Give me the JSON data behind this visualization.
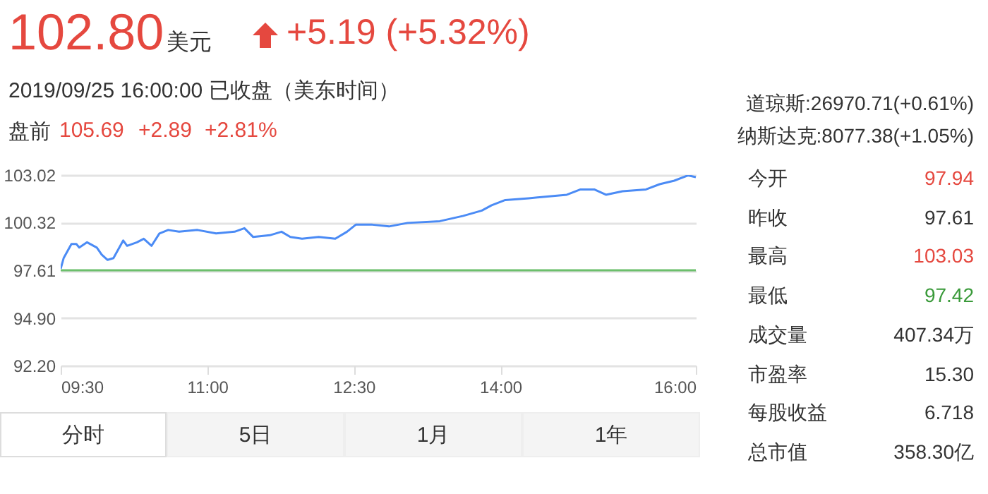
{
  "chart_data": {
    "type": "line",
    "title": "102.80",
    "subtitle": "2019/09/25 16:00:00 已收盘（美东时间）",
    "annotations": [
      "美元",
      "+5.19 (+5.32%)",
      "盘前",
      "105.69",
      "+2.89",
      "+2.81%",
      "道琼斯:26970.71(+0.61%)",
      "纳斯达克:8077.38(+1.05%)",
      "今开",
      "97.94",
      "昨收",
      "97.61",
      "最高",
      "103.03",
      "最低",
      "97.42",
      "成交量",
      "407.34万",
      "市盈率",
      "15.30",
      "每股收益",
      "6.718",
      "总市值",
      "358.30亿",
      "分时",
      "5日",
      "1月",
      "1年"
    ],
    "x": [
      9.5,
      9.53,
      9.61,
      9.66,
      9.69,
      9.77,
      9.87,
      9.92,
      9.98,
      10.04,
      10.14,
      10.18,
      10.28,
      10.35,
      10.43,
      10.51,
      10.6,
      10.71,
      10.9,
      11.09,
      11.28,
      11.38,
      11.47,
      11.64,
      11.76,
      11.85,
      11.97,
      12.14,
      12.31,
      12.43,
      12.52,
      12.69,
      12.86,
      13.05,
      13.38,
      13.62,
      13.81,
      13.91,
      14.05,
      14.29,
      14.48,
      14.68,
      14.82,
      14.96,
      15.08,
      15.25,
      15.49,
      15.63,
      15.78,
      15.92,
      16.0
    ],
    "series": [
      {
        "color": "#4b8bf5",
        "values": [
          97.7,
          98.3,
          99.1,
          99.1,
          98.9,
          99.2,
          98.9,
          98.5,
          98.2,
          98.3,
          99.3,
          99.0,
          99.2,
          99.4,
          99.0,
          99.7,
          99.9,
          99.8,
          99.9,
          99.7,
          99.8,
          100.0,
          99.5,
          99.6,
          99.8,
          99.5,
          99.4,
          99.5,
          99.4,
          99.8,
          100.2,
          100.2,
          100.1,
          100.3,
          100.4,
          100.7,
          101.0,
          101.3,
          101.6,
          101.7,
          101.8,
          101.9,
          102.2,
          102.2,
          101.9,
          102.1,
          102.2,
          102.5,
          102.7,
          103.0,
          102.9
        ]
      }
    ],
    "xlim": [
      9.5,
      16
    ],
    "xticks": [
      {
        "value": 9.5,
        "label": "09:30"
      },
      {
        "value": 11,
        "label": "11:00"
      },
      {
        "value": 12.5,
        "label": "12:30"
      },
      {
        "value": 14,
        "label": "14:00"
      },
      {
        "value": 16,
        "label": "16:00"
      }
    ],
    "ylim": [
      92.2,
      103.02
    ],
    "yticks": [
      {
        "value": 92.2,
        "label": "92.20"
      },
      {
        "value": 94.9,
        "label": "94.90"
      },
      97.61,
      100.32,
      103.02
    ],
    "ref_lines": [
      {
        "axis": "y",
        "value": 97.61,
        "color": "#6cbf6c"
      }
    ],
    "grid": "y"
  }
}
